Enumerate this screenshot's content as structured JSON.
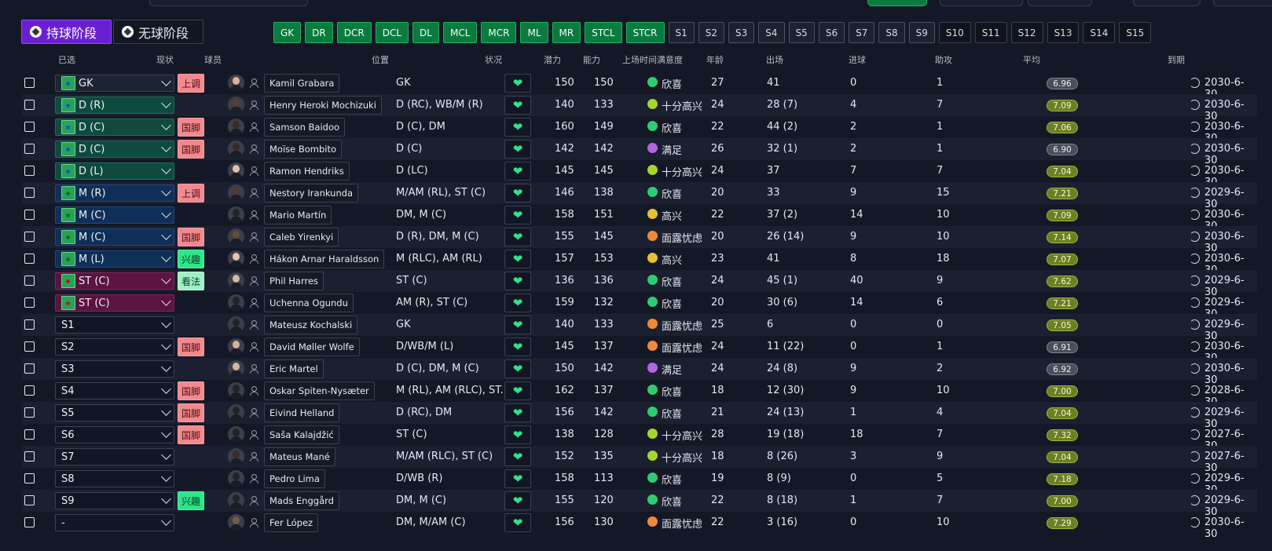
{
  "phase_tabs": [
    {
      "label": "持球阶段",
      "active": true
    },
    {
      "label": "无球阶段",
      "active": false
    }
  ],
  "position_buttons": [
    {
      "label": "GK",
      "style": "green"
    },
    {
      "label": "DR",
      "style": "green"
    },
    {
      "label": "DCR",
      "style": "green"
    },
    {
      "label": "DCL",
      "style": "green"
    },
    {
      "label": "DL",
      "style": "green"
    },
    {
      "label": "MCL",
      "style": "green"
    },
    {
      "label": "MCR",
      "style": "green"
    },
    {
      "label": "ML",
      "style": "green"
    },
    {
      "label": "MR",
      "style": "green"
    },
    {
      "label": "STCL",
      "style": "green"
    },
    {
      "label": "STCR",
      "style": "green"
    },
    {
      "label": "S1",
      "style": "grey"
    },
    {
      "label": "S2",
      "style": "grey"
    },
    {
      "label": "S3",
      "style": "grey"
    },
    {
      "label": "S4",
      "style": "grey"
    },
    {
      "label": "S5",
      "style": "grey"
    },
    {
      "label": "S6",
      "style": "grey"
    },
    {
      "label": "S7",
      "style": "grey"
    },
    {
      "label": "S8",
      "style": "grey"
    },
    {
      "label": "S9",
      "style": "grey"
    },
    {
      "label": "S10",
      "style": "dark"
    },
    {
      "label": "S11",
      "style": "dark"
    },
    {
      "label": "S12",
      "style": "dark"
    },
    {
      "label": "S13",
      "style": "dark"
    },
    {
      "label": "S14",
      "style": "dark"
    },
    {
      "label": "S15",
      "style": "dark"
    }
  ],
  "columns": {
    "selected": "已选",
    "status": "现状",
    "player": "球员",
    "position": "位置",
    "condition": "状况",
    "potential": "潜力",
    "ability": "能力",
    "playtime": "上场时间满意度",
    "age": "年龄",
    "apps": "出场",
    "goals": "进球",
    "assists": "助攻",
    "avg": "平均",
    "expiry": "到期"
  },
  "players": [
    {
      "slot": "GK",
      "slot_type": "gk",
      "status": "上调",
      "status_style": "red",
      "name": "Kamil Grabara",
      "position": "GK",
      "potential": "150",
      "ability": "150",
      "satisfaction": "欣喜",
      "sat_color": "#2ecc71",
      "age": "27",
      "apps": "41",
      "goals": "0",
      "assists": "1",
      "avg": "6.96",
      "avg_style": "grey",
      "expiry": "2030-6-30",
      "skin": "#d8b39a"
    },
    {
      "slot": "D (R)",
      "slot_type": "def",
      "status": "",
      "status_style": "",
      "name": "Henry Heroki Mochizuki",
      "position": "D (RC), WB/M (R)",
      "potential": "140",
      "ability": "133",
      "satisfaction": "十分高兴",
      "sat_color": "#a3d82a",
      "age": "24",
      "apps": "28 (7)",
      "goals": "4",
      "assists": "7",
      "avg": "7.09",
      "avg_style": "green",
      "expiry": "2030-6-30",
      "skin": "#5a3c2c"
    },
    {
      "slot": "D (C)",
      "slot_type": "def",
      "status": "国脚",
      "status_style": "red",
      "name": "Samson Baidoo",
      "position": "D (C), DM",
      "potential": "160",
      "ability": "149",
      "satisfaction": "欣喜",
      "sat_color": "#2ecc71",
      "age": "22",
      "apps": "44 (2)",
      "goals": "2",
      "assists": "1",
      "avg": "7.06",
      "avg_style": "green",
      "expiry": "2030-6-30",
      "skin": "#3e2a20"
    },
    {
      "slot": "D (C)",
      "slot_type": "def",
      "status": "国脚",
      "status_style": "red",
      "name": "Moïse Bombito",
      "position": "D (C)",
      "potential": "142",
      "ability": "142",
      "satisfaction": "满足",
      "sat_color": "#b366e0",
      "age": "26",
      "apps": "32 (1)",
      "goals": "2",
      "assists": "1",
      "avg": "6.90",
      "avg_style": "grey",
      "expiry": "2030-6-30",
      "skin": "#3b2a22"
    },
    {
      "slot": "D (L)",
      "slot_type": "def",
      "status": "",
      "status_style": "",
      "name": "Ramon Hendriks",
      "position": "D (LC)",
      "potential": "145",
      "ability": "145",
      "satisfaction": "十分高兴",
      "sat_color": "#a3d82a",
      "age": "24",
      "apps": "37",
      "goals": "7",
      "assists": "7",
      "avg": "7.04",
      "avg_style": "green",
      "expiry": "2030-6-30",
      "skin": "#e0c0a8"
    },
    {
      "slot": "M (R)",
      "slot_type": "mid",
      "status": "上调",
      "status_style": "red",
      "name": "Nestory Irankunda",
      "position": "M/AM (RL), ST (C)",
      "potential": "146",
      "ability": "138",
      "satisfaction": "欣喜",
      "sat_color": "#2ecc71",
      "age": "20",
      "apps": "33",
      "goals": "9",
      "assists": "15",
      "avg": "7.21",
      "avg_style": "green",
      "expiry": "2029-6-30",
      "skin": "#4d3c34"
    },
    {
      "slot": "M (C)",
      "slot_type": "mid",
      "status": "",
      "status_style": "",
      "name": "Mario Martín",
      "position": "DM, M (C)",
      "potential": "158",
      "ability": "151",
      "satisfaction": "高兴",
      "sat_color": "#e6c233",
      "age": "22",
      "apps": "37 (2)",
      "goals": "14",
      "assists": "10",
      "avg": "7.09",
      "avg_style": "green",
      "expiry": "2030-6-30",
      "skin": "#202229"
    },
    {
      "slot": "M (C)",
      "slot_type": "mid",
      "status": "国脚",
      "status_style": "red",
      "name": "Caleb Yirenkyi",
      "position": "D (R), DM, M (C)",
      "potential": "155",
      "ability": "145",
      "satisfaction": "面露忧虑",
      "sat_color": "#f0893e",
      "age": "20",
      "apps": "26 (14)",
      "goals": "9",
      "assists": "10",
      "avg": "7.14",
      "avg_style": "green",
      "expiry": "2030-6-30",
      "skin": "#6b4a36"
    },
    {
      "slot": "M (L)",
      "slot_type": "mid",
      "status": "兴趣",
      "status_style": "green",
      "name": "Hákon Arnar Haraldsson",
      "position": "M (RLC), AM (RL)",
      "potential": "157",
      "ability": "153",
      "satisfaction": "高兴",
      "sat_color": "#e6c233",
      "age": "23",
      "apps": "41",
      "goals": "8",
      "assists": "18",
      "avg": "7.07",
      "avg_style": "green",
      "expiry": "2030-6-30",
      "skin": "#e4c4ae"
    },
    {
      "slot": "ST (C)",
      "slot_type": "att",
      "status": "看法",
      "status_style": "mint",
      "name": "Phil Harres",
      "position": "ST (C)",
      "potential": "136",
      "ability": "136",
      "satisfaction": "欣喜",
      "sat_color": "#2ecc71",
      "age": "24",
      "apps": "45 (1)",
      "goals": "40",
      "assists": "9",
      "avg": "7.62",
      "avg_style": "green",
      "expiry": "2029-6-30",
      "skin": "#d9b8a0"
    },
    {
      "slot": "ST (C)",
      "slot_type": "att",
      "status": "",
      "status_style": "",
      "name": "Uchenna Ogundu",
      "position": "AM (R), ST (C)",
      "potential": "159",
      "ability": "132",
      "satisfaction": "欣喜",
      "sat_color": "#2ecc71",
      "age": "20",
      "apps": "30 (6)",
      "goals": "14",
      "assists": "6",
      "avg": "7.21",
      "avg_style": "green",
      "expiry": "2029-6-30",
      "skin": "#202229"
    },
    {
      "slot": "S1",
      "slot_type": "sub",
      "status": "",
      "status_style": "",
      "name": "Mateusz Kochalski",
      "position": "GK",
      "potential": "140",
      "ability": "133",
      "satisfaction": "面露忧虑",
      "sat_color": "#f0893e",
      "age": "25",
      "apps": "6",
      "goals": "0",
      "assists": "0",
      "avg": "7.05",
      "avg_style": "green",
      "expiry": "2029-6-30",
      "skin": "#202229"
    },
    {
      "slot": "S2",
      "slot_type": "sub",
      "status": "国脚",
      "status_style": "red",
      "name": "David Møller Wolfe",
      "position": "D/WB/M (L)",
      "potential": "145",
      "ability": "137",
      "satisfaction": "面露忧虑",
      "sat_color": "#f0893e",
      "age": "24",
      "apps": "11 (22)",
      "goals": "0",
      "assists": "1",
      "avg": "6.91",
      "avg_style": "grey",
      "expiry": "2030-6-30",
      "skin": "#d7b29a"
    },
    {
      "slot": "S3",
      "slot_type": "sub",
      "status": "",
      "status_style": "",
      "name": "Eric Martel",
      "position": "D (C), DM, M (C)",
      "potential": "150",
      "ability": "142",
      "satisfaction": "满足",
      "sat_color": "#b366e0",
      "age": "24",
      "apps": "24 (8)",
      "goals": "9",
      "assists": "2",
      "avg": "6.92",
      "avg_style": "grey",
      "expiry": "2030-6-30",
      "skin": "#d6b69e"
    },
    {
      "slot": "S4",
      "slot_type": "sub",
      "status": "国脚",
      "status_style": "red",
      "name": "Oskar Spiten-Nysæter",
      "position": "M (RL), AM (RLC), ST...",
      "potential": "162",
      "ability": "137",
      "satisfaction": "欣喜",
      "sat_color": "#2ecc71",
      "age": "18",
      "apps": "12 (30)",
      "goals": "9",
      "assists": "10",
      "avg": "7.00",
      "avg_style": "green",
      "expiry": "2028-6-30",
      "skin": "#202229"
    },
    {
      "slot": "S5",
      "slot_type": "sub",
      "status": "国脚",
      "status_style": "red",
      "name": "Eivind Helland",
      "position": "D (RC), DM",
      "potential": "156",
      "ability": "142",
      "satisfaction": "欣喜",
      "sat_color": "#2ecc71",
      "age": "21",
      "apps": "24 (13)",
      "goals": "1",
      "assists": "4",
      "avg": "7.04",
      "avg_style": "green",
      "expiry": "2029-6-30",
      "skin": "#202229"
    },
    {
      "slot": "S6",
      "slot_type": "sub",
      "status": "国脚",
      "status_style": "red",
      "name": "Saša Kalajdžić",
      "position": "ST (C)",
      "potential": "138",
      "ability": "128",
      "satisfaction": "十分高兴",
      "sat_color": "#a3d82a",
      "age": "28",
      "apps": "19 (18)",
      "goals": "18",
      "assists": "7",
      "avg": "7.32",
      "avg_style": "green",
      "expiry": "2027-6-30",
      "skin": "#202229"
    },
    {
      "slot": "S7",
      "slot_type": "sub",
      "status": "",
      "status_style": "",
      "name": "Mateus Mané",
      "position": "M/AM (RLC), ST (C)",
      "potential": "152",
      "ability": "135",
      "satisfaction": "十分高兴",
      "sat_color": "#a3d82a",
      "age": "18",
      "apps": "8 (26)",
      "goals": "3",
      "assists": "9",
      "avg": "7.04",
      "avg_style": "green",
      "expiry": "2027-6-30",
      "skin": "#3e2b22"
    },
    {
      "slot": "S8",
      "slot_type": "sub",
      "status": "",
      "status_style": "",
      "name": "Pedro Lima",
      "position": "D/WB (R)",
      "potential": "158",
      "ability": "113",
      "satisfaction": "欣喜",
      "sat_color": "#2ecc71",
      "age": "19",
      "apps": "8 (9)",
      "goals": "0",
      "assists": "5",
      "avg": "7.18",
      "avg_style": "green",
      "expiry": "2029-6-30",
      "skin": "#202229"
    },
    {
      "slot": "S9",
      "slot_type": "sub",
      "status": "兴趣",
      "status_style": "green",
      "name": "Mads Enggård",
      "position": "DM, M (C)",
      "potential": "155",
      "ability": "120",
      "satisfaction": "欣喜",
      "sat_color": "#2ecc71",
      "age": "22",
      "apps": "8 (18)",
      "goals": "1",
      "assists": "7",
      "avg": "7.00",
      "avg_style": "green",
      "expiry": "2029-6-30",
      "skin": "#202229"
    },
    {
      "slot": "-",
      "slot_type": "sub",
      "status": "",
      "status_style": "",
      "name": "Fer López",
      "position": "DM, M/AM (C)",
      "potential": "156",
      "ability": "130",
      "satisfaction": "面露忧虑",
      "sat_color": "#f0893e",
      "age": "22",
      "apps": "3 (16)",
      "goals": "0",
      "assists": "10",
      "avg": "7.29",
      "avg_style": "green",
      "expiry": "2030-6-30",
      "skin": "#7a5a44"
    }
  ]
}
